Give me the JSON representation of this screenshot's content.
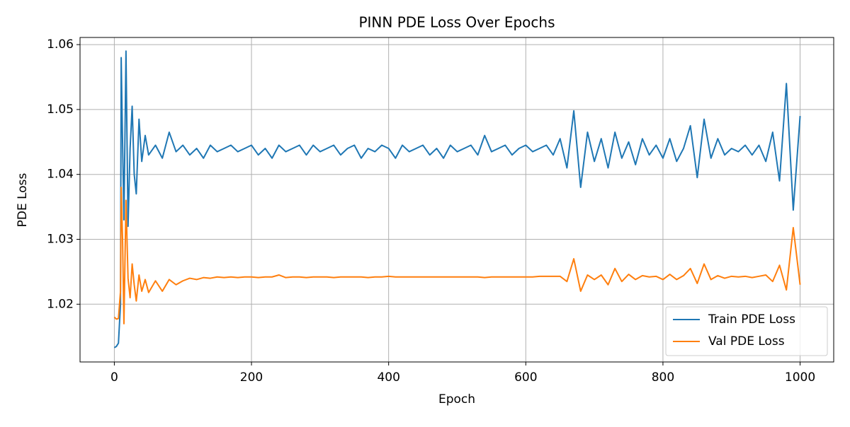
{
  "chart_data": {
    "type": "line",
    "title": "PINN PDE Loss Over Epochs",
    "x_label": "Epoch",
    "y_label": "PDE Loss",
    "x": [
      0,
      3,
      6,
      9,
      10,
      12,
      14,
      17,
      20,
      23,
      26,
      29,
      32,
      36,
      40,
      45,
      50,
      60,
      70,
      80,
      90,
      100,
      110,
      120,
      130,
      140,
      150,
      160,
      170,
      180,
      190,
      200,
      210,
      220,
      230,
      240,
      250,
      260,
      270,
      280,
      290,
      300,
      310,
      320,
      330,
      340,
      350,
      360,
      370,
      380,
      390,
      400,
      410,
      420,
      430,
      440,
      450,
      460,
      470,
      480,
      490,
      500,
      510,
      520,
      530,
      540,
      550,
      560,
      570,
      580,
      590,
      600,
      610,
      620,
      630,
      640,
      650,
      660,
      670,
      680,
      690,
      700,
      710,
      720,
      730,
      740,
      750,
      760,
      770,
      780,
      790,
      800,
      810,
      820,
      830,
      840,
      850,
      860,
      870,
      880,
      890,
      900,
      910,
      920,
      930,
      940,
      950,
      960,
      970,
      980,
      990,
      1000
    ],
    "series": [
      {
        "name": "Train PDE Loss",
        "color": "#1f77b4",
        "values": [
          1.0133,
          1.0135,
          1.014,
          1.02,
          1.058,
          1.045,
          1.033,
          1.059,
          1.032,
          1.044,
          1.0505,
          1.04,
          1.037,
          1.0485,
          1.042,
          1.046,
          1.043,
          1.0445,
          1.0425,
          1.0465,
          1.0435,
          1.0445,
          1.043,
          1.044,
          1.0425,
          1.0445,
          1.0435,
          1.044,
          1.0445,
          1.0435,
          1.044,
          1.0445,
          1.043,
          1.044,
          1.0425,
          1.0445,
          1.0435,
          1.044,
          1.0445,
          1.043,
          1.0445,
          1.0435,
          1.044,
          1.0445,
          1.043,
          1.044,
          1.0445,
          1.0425,
          1.044,
          1.0435,
          1.0445,
          1.044,
          1.0425,
          1.0445,
          1.0435,
          1.044,
          1.0445,
          1.043,
          1.044,
          1.0425,
          1.0445,
          1.0435,
          1.044,
          1.0445,
          1.043,
          1.046,
          1.0435,
          1.044,
          1.0445,
          1.043,
          1.044,
          1.0445,
          1.0435,
          1.044,
          1.0445,
          1.043,
          1.0455,
          1.041,
          1.0498,
          1.038,
          1.0465,
          1.042,
          1.0455,
          1.041,
          1.0465,
          1.0425,
          1.045,
          1.0415,
          1.0455,
          1.043,
          1.0445,
          1.0425,
          1.0455,
          1.042,
          1.044,
          1.0475,
          1.0395,
          1.0485,
          1.0425,
          1.0455,
          1.043,
          1.044,
          1.0435,
          1.0445,
          1.043,
          1.0445,
          1.042,
          1.0465,
          1.039,
          1.054,
          1.0345,
          1.049
        ]
      },
      {
        "name": "Val PDE Loss",
        "color": "#ff7f0e",
        "values": [
          1.018,
          1.0177,
          1.0178,
          1.022,
          1.038,
          1.03,
          1.017,
          1.036,
          1.024,
          1.021,
          1.0262,
          1.023,
          1.0205,
          1.0245,
          1.022,
          1.0238,
          1.0218,
          1.0236,
          1.022,
          1.0238,
          1.023,
          1.0236,
          1.024,
          1.0238,
          1.0241,
          1.024,
          1.0242,
          1.0241,
          1.0242,
          1.0241,
          1.0242,
          1.0242,
          1.0241,
          1.0242,
          1.0242,
          1.0245,
          1.0241,
          1.0242,
          1.0242,
          1.0241,
          1.0242,
          1.0242,
          1.0242,
          1.0241,
          1.0242,
          1.0242,
          1.0242,
          1.0242,
          1.0241,
          1.0242,
          1.0242,
          1.0243,
          1.0242,
          1.0242,
          1.0242,
          1.0242,
          1.0242,
          1.0242,
          1.0242,
          1.0242,
          1.0242,
          1.0242,
          1.0242,
          1.0242,
          1.0242,
          1.0241,
          1.0242,
          1.0242,
          1.0242,
          1.0242,
          1.0242,
          1.0242,
          1.0242,
          1.0243,
          1.0243,
          1.0243,
          1.0243,
          1.0235,
          1.027,
          1.022,
          1.0245,
          1.0238,
          1.0245,
          1.023,
          1.0255,
          1.0235,
          1.0246,
          1.0238,
          1.0244,
          1.0242,
          1.0243,
          1.0238,
          1.0246,
          1.0238,
          1.0244,
          1.0255,
          1.0232,
          1.0262,
          1.0238,
          1.0244,
          1.024,
          1.0243,
          1.0242,
          1.0243,
          1.0241,
          1.0243,
          1.0245,
          1.0235,
          1.026,
          1.0222,
          1.0318,
          1.023
        ]
      }
    ],
    "xlim": [
      -50,
      1049
    ],
    "ylim": [
      1.0111,
      1.0611
    ],
    "xticks": [
      0,
      200,
      400,
      600,
      800,
      1000
    ],
    "yticks": [
      1.02,
      1.03,
      1.04,
      1.05,
      1.06
    ],
    "grid": true,
    "legend": "lower right"
  }
}
